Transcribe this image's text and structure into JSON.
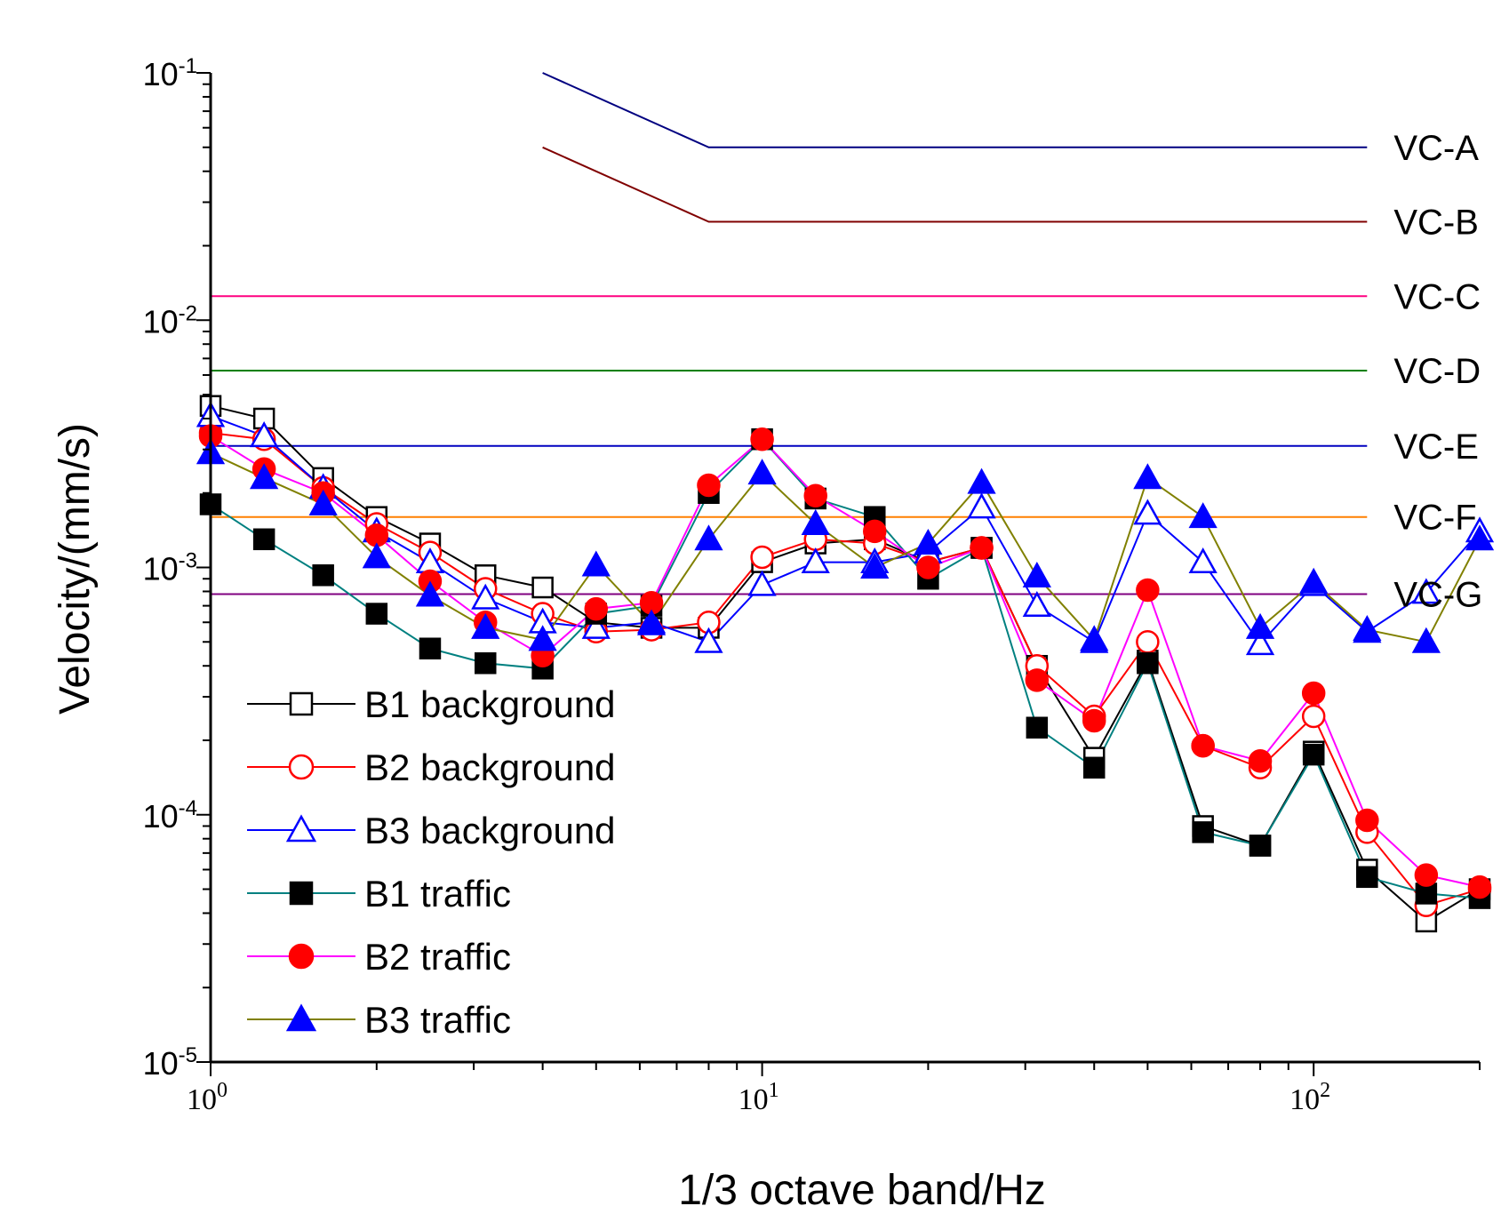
{
  "chart_data": {
    "type": "line",
    "xlabel": "1/3 octave band/Hz",
    "ylabel": "Velocity/(mm/s)",
    "xscale": "log",
    "yscale": "log",
    "xlim": [
      1,
      200
    ],
    "ylim": [
      1e-05,
      0.1
    ],
    "x_ticks": [
      {
        "base": "10",
        "exp": "0",
        "value": 1
      },
      {
        "base": "10",
        "exp": "1",
        "value": 10
      },
      {
        "base": "10",
        "exp": "2",
        "value": 100
      }
    ],
    "y_ticks": [
      {
        "base": "10",
        "exp": "-1",
        "value": 0.1
      },
      {
        "base": "10",
        "exp": "-2",
        "value": 0.01
      },
      {
        "base": "10",
        "exp": "-3",
        "value": 0.001
      },
      {
        "base": "10",
        "exp": "-4",
        "value": 0.0001
      },
      {
        "base": "10",
        "exp": "-5",
        "value": 1e-05
      }
    ],
    "legend_position": "bottom-left",
    "x": [
      1,
      1.25,
      1.6,
      2,
      2.5,
      3.15,
      4,
      5,
      6.3,
      8,
      10,
      12.5,
      16,
      20,
      25,
      31.5,
      40,
      50,
      63,
      80,
      100,
      125,
      160,
      200
    ],
    "series": [
      {
        "name": "B1 background",
        "color": "#000000",
        "marker": "square",
        "filled": false,
        "values": [
          0.0045,
          0.004,
          0.0023,
          0.0016,
          0.00125,
          0.00093,
          0.00083,
          0.0006,
          0.00057,
          0.00057,
          0.00105,
          0.00125,
          0.0013,
          0.00105,
          0.0012,
          0.0004,
          0.00017,
          0.00042,
          9e-05,
          7.5e-05,
          0.00018,
          6e-05,
          3.7e-05,
          5e-05
        ]
      },
      {
        "name": "B2 background",
        "color": "#ff0000",
        "marker": "circle",
        "filled": false,
        "values": [
          0.0035,
          0.0033,
          0.0021,
          0.0015,
          0.00115,
          0.00082,
          0.00065,
          0.00055,
          0.00056,
          0.0006,
          0.0011,
          0.0013,
          0.00125,
          0.00105,
          0.0012,
          0.0004,
          0.00025,
          0.0005,
          0.00019,
          0.000155,
          0.00025,
          8.5e-05,
          4.3e-05,
          5e-05
        ]
      },
      {
        "name": "B3 background",
        "color": "#0000ff",
        "marker": "triangle",
        "filled": false,
        "values": [
          0.0041,
          0.0034,
          0.0021,
          0.0014,
          0.00105,
          0.00075,
          0.0006,
          0.00057,
          0.0006,
          0.0005,
          0.00085,
          0.00105,
          0.00105,
          0.00115,
          0.00175,
          0.0007,
          0.0005,
          0.00165,
          0.00105,
          0.00049,
          0.00085,
          0.00055,
          0.00079,
          0.0014
        ]
      },
      {
        "name": "B1 traffic",
        "color": "#008080",
        "marker": "square",
        "filled": true,
        "values": [
          0.0018,
          0.0013,
          0.00093,
          0.00065,
          0.00047,
          0.00041,
          0.00039,
          0.00065,
          0.0007,
          0.002,
          0.0033,
          0.0019,
          0.0016,
          0.0009,
          0.0012,
          0.000225,
          0.000155,
          0.00041,
          8.5e-05,
          7.5e-05,
          0.000175,
          5.6e-05,
          4.8e-05,
          4.6e-05
        ]
      },
      {
        "name": "B2 traffic",
        "color": "#ff00ff",
        "marker": "circle",
        "filled": true,
        "values": [
          0.0034,
          0.0025,
          0.002,
          0.00135,
          0.00088,
          0.0006,
          0.00044,
          0.00068,
          0.00072,
          0.00215,
          0.0033,
          0.00195,
          0.0014,
          0.001,
          0.0012,
          0.00035,
          0.00024,
          0.00081,
          0.00019,
          0.000165,
          0.00031,
          9.5e-05,
          5.7e-05,
          5.1e-05
        ]
      },
      {
        "name": "B3 traffic",
        "color": "#808000",
        "marker": "triangle",
        "filled": true,
        "values": [
          0.0029,
          0.0023,
          0.0018,
          0.0011,
          0.00077,
          0.00057,
          0.00051,
          0.00102,
          0.00059,
          0.0013,
          0.0024,
          0.0015,
          0.001,
          0.00125,
          0.0022,
          0.00092,
          0.00051,
          0.0023,
          0.0016,
          0.00057,
          0.00087,
          0.00056,
          0.0005,
          0.0013
        ]
      }
    ],
    "criteria_lines": [
      {
        "name": "VC-A",
        "color": "#000080",
        "points": [
          [
            4,
            0.1
          ],
          [
            8,
            0.05
          ],
          [
            125,
            0.05
          ]
        ]
      },
      {
        "name": "VC-B",
        "color": "#800000",
        "points": [
          [
            4,
            0.05
          ],
          [
            8,
            0.025
          ],
          [
            125,
            0.025
          ]
        ]
      },
      {
        "name": "VC-C",
        "color": "#ff0080",
        "points": [
          [
            1,
            0.0125
          ],
          [
            125,
            0.0125
          ]
        ]
      },
      {
        "name": "VC-D",
        "color": "#008000",
        "points": [
          [
            1,
            0.00625
          ],
          [
            125,
            0.00625
          ]
        ]
      },
      {
        "name": "VC-E",
        "color": "#0000c0",
        "points": [
          [
            1,
            0.0031
          ],
          [
            125,
            0.0031
          ]
        ]
      },
      {
        "name": "VC-F",
        "color": "#ff8000",
        "points": [
          [
            1,
            0.0016
          ],
          [
            125,
            0.0016
          ]
        ]
      },
      {
        "name": "VC-G",
        "color": "#800080",
        "points": [
          [
            1,
            0.00078
          ],
          [
            125,
            0.00078
          ]
        ]
      }
    ]
  }
}
